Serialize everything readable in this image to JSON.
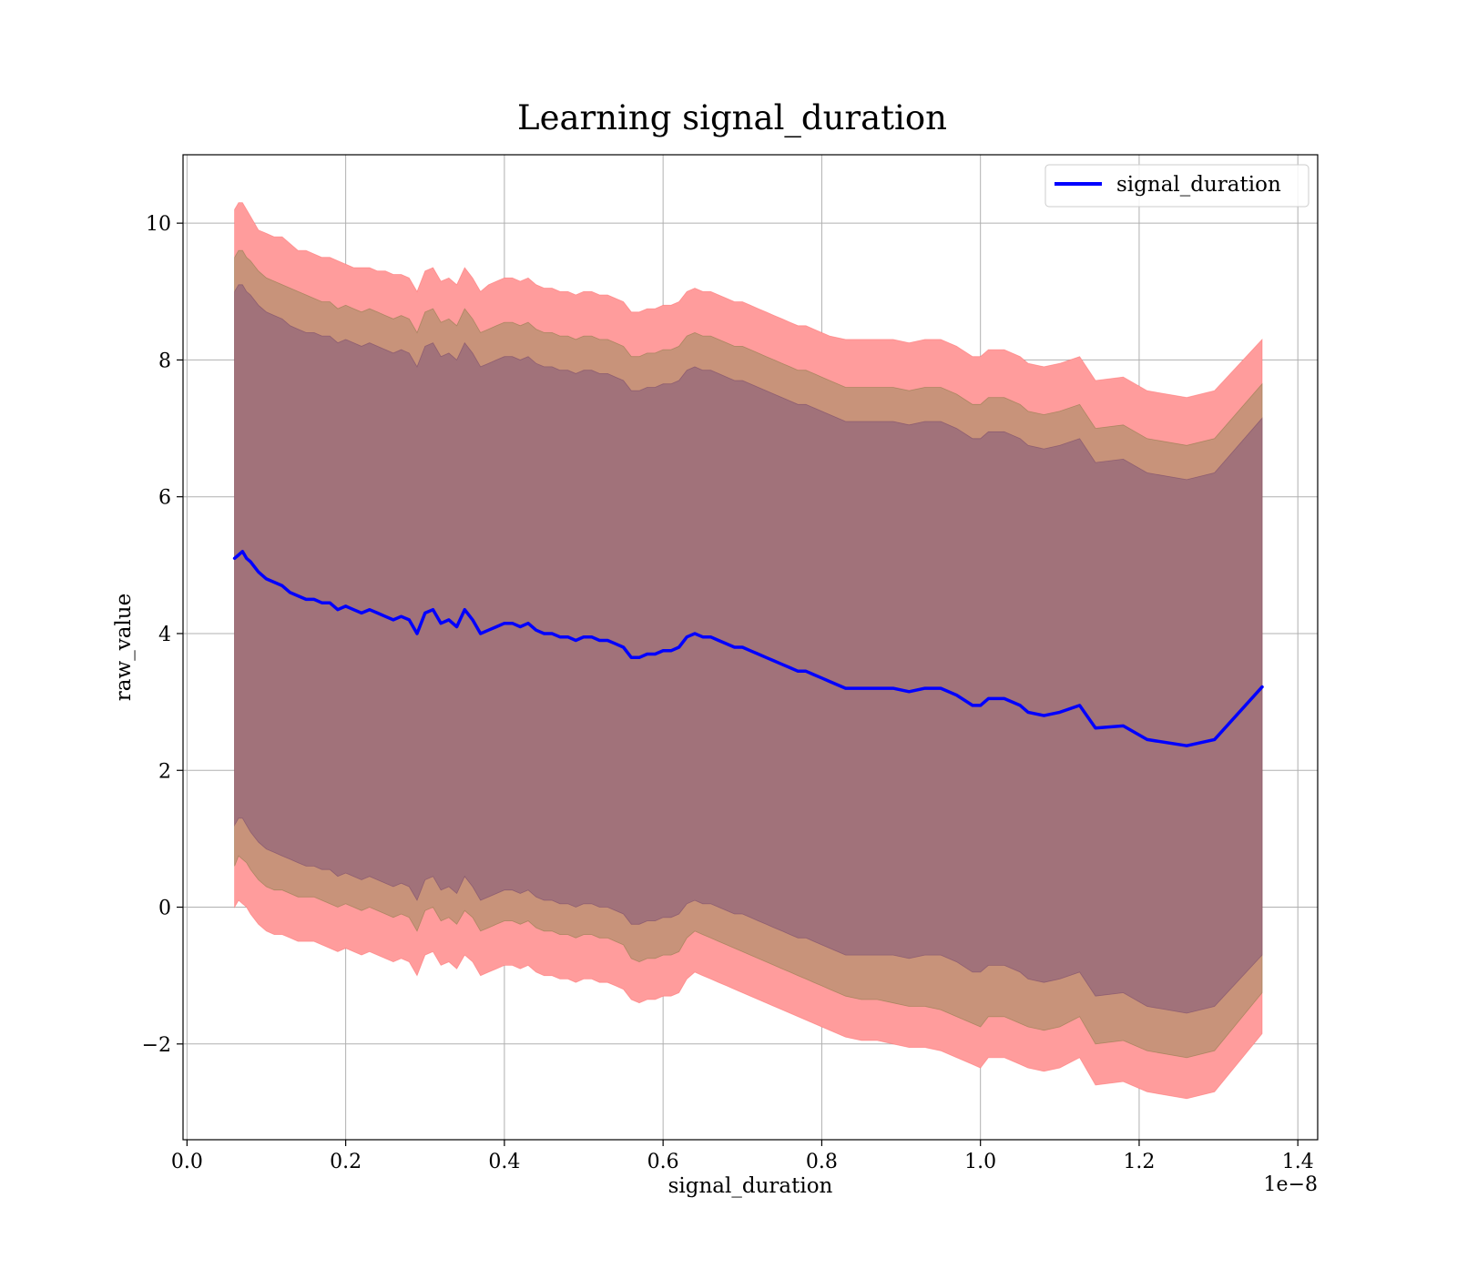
{
  "chart_data": {
    "type": "line",
    "title": "Learning signal_duration",
    "xlabel": "signal_duration",
    "ylabel": "raw_value",
    "x_offset_text": "1e−8",
    "xlim": [
      -0.005,
      1.425
    ],
    "ylim": [
      -3.4,
      11.0
    ],
    "x_ticks": [
      0.0,
      0.2,
      0.4,
      0.6,
      0.8,
      1.0,
      1.2,
      1.4
    ],
    "x_tick_labels": [
      "0.0",
      "0.2",
      "0.4",
      "0.6",
      "0.8",
      "1.0",
      "1.2",
      "1.4"
    ],
    "y_ticks": [
      -2,
      0,
      2,
      4,
      6,
      8,
      10
    ],
    "y_tick_labels": [
      "−2",
      "0",
      "2",
      "4",
      "6",
      "8",
      "10"
    ],
    "grid": true,
    "legend_position": "top-right",
    "colors": {
      "line": "#0000ff",
      "band_outer": "#ff9c9c",
      "band_middle": "#c8937a",
      "band_inner": "#a1727a",
      "band_outer_edge": "#ff7070",
      "band_middle_edge": "#8e7b4a",
      "band_inner_edge": "#7a4a6a"
    },
    "series": [
      {
        "name": "signal_duration",
        "x": [
          0.06,
          0.065,
          0.07,
          0.075,
          0.08,
          0.09,
          0.1,
          0.11,
          0.12,
          0.13,
          0.14,
          0.15,
          0.16,
          0.17,
          0.18,
          0.19,
          0.2,
          0.21,
          0.22,
          0.23,
          0.24,
          0.25,
          0.26,
          0.27,
          0.28,
          0.29,
          0.3,
          0.31,
          0.32,
          0.33,
          0.34,
          0.35,
          0.36,
          0.37,
          0.38,
          0.39,
          0.4,
          0.41,
          0.42,
          0.43,
          0.44,
          0.45,
          0.46,
          0.47,
          0.48,
          0.49,
          0.5,
          0.51,
          0.52,
          0.53,
          0.54,
          0.55,
          0.56,
          0.57,
          0.58,
          0.59,
          0.6,
          0.61,
          0.62,
          0.63,
          0.64,
          0.65,
          0.66,
          0.67,
          0.68,
          0.69,
          0.7,
          0.71,
          0.72,
          0.73,
          0.74,
          0.75,
          0.76,
          0.77,
          0.78,
          0.79,
          0.8,
          0.81,
          0.83,
          0.85,
          0.87,
          0.89,
          0.91,
          0.93,
          0.95,
          0.97,
          0.99,
          1.0,
          1.01,
          1.03,
          1.05,
          1.06,
          1.08,
          1.1,
          1.125,
          1.145,
          1.18,
          1.21,
          1.26,
          1.295,
          1.355
        ],
        "values": [
          5.1,
          5.15,
          5.2,
          5.1,
          5.05,
          4.9,
          4.8,
          4.75,
          4.7,
          4.6,
          4.55,
          4.5,
          4.5,
          4.45,
          4.45,
          4.35,
          4.4,
          4.35,
          4.3,
          4.35,
          4.3,
          4.25,
          4.2,
          4.25,
          4.2,
          4.0,
          4.3,
          4.35,
          4.15,
          4.2,
          4.1,
          4.35,
          4.2,
          4.0,
          4.05,
          4.1,
          4.15,
          4.15,
          4.1,
          4.15,
          4.05,
          4.0,
          4.0,
          3.95,
          3.95,
          3.9,
          3.95,
          3.95,
          3.9,
          3.9,
          3.85,
          3.8,
          3.65,
          3.65,
          3.7,
          3.7,
          3.75,
          3.75,
          3.8,
          3.95,
          4.0,
          3.95,
          3.95,
          3.9,
          3.85,
          3.8,
          3.8,
          3.75,
          3.7,
          3.65,
          3.6,
          3.55,
          3.5,
          3.45,
          3.45,
          3.4,
          3.35,
          3.3,
          3.2,
          3.2,
          3.2,
          3.2,
          3.15,
          3.2,
          3.2,
          3.1,
          2.95,
          2.95,
          3.05,
          3.05,
          2.95,
          2.85,
          2.8,
          2.85,
          2.95,
          2.62,
          2.65,
          2.45,
          2.36,
          2.45,
          3.22
        ]
      }
    ],
    "bands": [
      {
        "level": "outer",
        "lower": [
          0.0,
          0.1,
          0.05,
          0.0,
          -0.1,
          -0.25,
          -0.35,
          -0.4,
          -0.4,
          -0.45,
          -0.5,
          -0.5,
          -0.5,
          -0.55,
          -0.6,
          -0.65,
          -0.6,
          -0.65,
          -0.7,
          -0.65,
          -0.7,
          -0.75,
          -0.8,
          -0.75,
          -0.8,
          -1.0,
          -0.7,
          -0.65,
          -0.85,
          -0.8,
          -0.9,
          -0.7,
          -0.8,
          -1.0,
          -0.95,
          -0.9,
          -0.85,
          -0.85,
          -0.9,
          -0.85,
          -0.95,
          -1.0,
          -1.0,
          -1.05,
          -1.05,
          -1.1,
          -1.05,
          -1.05,
          -1.1,
          -1.1,
          -1.15,
          -1.2,
          -1.35,
          -1.4,
          -1.35,
          -1.35,
          -1.3,
          -1.3,
          -1.25,
          -1.05,
          -0.95,
          -1.0,
          -1.05,
          -1.1,
          -1.15,
          -1.2,
          -1.25,
          -1.3,
          -1.35,
          -1.4,
          -1.45,
          -1.5,
          -1.55,
          -1.6,
          -1.65,
          -1.7,
          -1.75,
          -1.8,
          -1.9,
          -1.95,
          -1.95,
          -2.0,
          -2.05,
          -2.05,
          -2.1,
          -2.2,
          -2.3,
          -2.35,
          -2.2,
          -2.2,
          -2.3,
          -2.35,
          -2.4,
          -2.35,
          -2.2,
          -2.6,
          -2.55,
          -2.7,
          -2.8,
          -2.7,
          -1.85
        ],
        "upper": [
          10.2,
          10.3,
          10.3,
          10.2,
          10.1,
          9.9,
          9.85,
          9.8,
          9.8,
          9.7,
          9.6,
          9.6,
          9.55,
          9.5,
          9.5,
          9.45,
          9.4,
          9.35,
          9.35,
          9.35,
          9.3,
          9.3,
          9.25,
          9.25,
          9.2,
          9.0,
          9.3,
          9.35,
          9.15,
          9.2,
          9.1,
          9.35,
          9.2,
          9.0,
          9.1,
          9.15,
          9.2,
          9.2,
          9.15,
          9.2,
          9.1,
          9.05,
          9.05,
          9.0,
          9.0,
          8.95,
          9.0,
          9.0,
          8.95,
          8.95,
          8.9,
          8.85,
          8.7,
          8.7,
          8.75,
          8.75,
          8.8,
          8.8,
          8.85,
          9.0,
          9.05,
          9.0,
          9.0,
          8.95,
          8.9,
          8.85,
          8.85,
          8.8,
          8.75,
          8.7,
          8.65,
          8.6,
          8.55,
          8.5,
          8.5,
          8.45,
          8.4,
          8.35,
          8.3,
          8.3,
          8.3,
          8.3,
          8.25,
          8.3,
          8.3,
          8.2,
          8.05,
          8.05,
          8.15,
          8.15,
          8.05,
          7.95,
          7.9,
          7.95,
          8.05,
          7.7,
          7.75,
          7.55,
          7.45,
          7.55,
          8.3
        ]
      },
      {
        "level": "middle",
        "lower": [
          0.6,
          0.75,
          0.7,
          0.65,
          0.55,
          0.4,
          0.3,
          0.25,
          0.25,
          0.2,
          0.15,
          0.15,
          0.15,
          0.1,
          0.05,
          0.0,
          0.05,
          0.0,
          -0.05,
          0.0,
          -0.05,
          -0.1,
          -0.15,
          -0.1,
          -0.15,
          -0.35,
          -0.05,
          0.0,
          -0.2,
          -0.15,
          -0.25,
          -0.05,
          -0.15,
          -0.35,
          -0.3,
          -0.25,
          -0.2,
          -0.2,
          -0.25,
          -0.2,
          -0.3,
          -0.35,
          -0.35,
          -0.4,
          -0.4,
          -0.45,
          -0.4,
          -0.4,
          -0.45,
          -0.45,
          -0.5,
          -0.55,
          -0.75,
          -0.8,
          -0.75,
          -0.75,
          -0.7,
          -0.7,
          -0.65,
          -0.45,
          -0.35,
          -0.4,
          -0.45,
          -0.5,
          -0.55,
          -0.6,
          -0.65,
          -0.7,
          -0.75,
          -0.8,
          -0.85,
          -0.9,
          -0.95,
          -1.0,
          -1.05,
          -1.1,
          -1.15,
          -1.2,
          -1.3,
          -1.35,
          -1.35,
          -1.4,
          -1.45,
          -1.45,
          -1.5,
          -1.6,
          -1.7,
          -1.75,
          -1.6,
          -1.6,
          -1.7,
          -1.75,
          -1.8,
          -1.75,
          -1.6,
          -2.0,
          -1.95,
          -2.1,
          -2.2,
          -2.1,
          -1.25
        ],
        "upper": [
          9.5,
          9.6,
          9.6,
          9.5,
          9.45,
          9.3,
          9.2,
          9.15,
          9.1,
          9.05,
          9.0,
          8.95,
          8.9,
          8.85,
          8.85,
          8.75,
          8.8,
          8.75,
          8.7,
          8.75,
          8.7,
          8.65,
          8.6,
          8.65,
          8.6,
          8.4,
          8.7,
          8.75,
          8.55,
          8.6,
          8.5,
          8.75,
          8.6,
          8.4,
          8.45,
          8.5,
          8.55,
          8.55,
          8.5,
          8.55,
          8.45,
          8.4,
          8.4,
          8.35,
          8.35,
          8.3,
          8.35,
          8.35,
          8.3,
          8.3,
          8.25,
          8.2,
          8.05,
          8.05,
          8.1,
          8.1,
          8.15,
          8.15,
          8.2,
          8.35,
          8.4,
          8.35,
          8.35,
          8.3,
          8.25,
          8.2,
          8.2,
          8.15,
          8.1,
          8.05,
          8.0,
          7.95,
          7.9,
          7.85,
          7.85,
          7.8,
          7.75,
          7.7,
          7.6,
          7.6,
          7.6,
          7.6,
          7.55,
          7.6,
          7.6,
          7.5,
          7.35,
          7.35,
          7.45,
          7.45,
          7.35,
          7.25,
          7.2,
          7.25,
          7.35,
          7.0,
          7.05,
          6.85,
          6.75,
          6.85,
          7.65
        ]
      },
      {
        "level": "inner",
        "lower": [
          1.2,
          1.3,
          1.3,
          1.2,
          1.1,
          0.95,
          0.85,
          0.8,
          0.75,
          0.7,
          0.65,
          0.6,
          0.6,
          0.55,
          0.55,
          0.45,
          0.5,
          0.45,
          0.4,
          0.45,
          0.4,
          0.35,
          0.3,
          0.35,
          0.3,
          0.1,
          0.4,
          0.45,
          0.25,
          0.3,
          0.2,
          0.45,
          0.3,
          0.1,
          0.15,
          0.2,
          0.25,
          0.25,
          0.2,
          0.25,
          0.15,
          0.1,
          0.1,
          0.05,
          0.05,
          0.0,
          0.05,
          0.05,
          0.0,
          0.0,
          -0.05,
          -0.1,
          -0.25,
          -0.25,
          -0.2,
          -0.2,
          -0.15,
          -0.15,
          -0.1,
          0.05,
          0.1,
          0.05,
          0.05,
          0.0,
          -0.05,
          -0.1,
          -0.1,
          -0.15,
          -0.2,
          -0.25,
          -0.3,
          -0.35,
          -0.4,
          -0.45,
          -0.45,
          -0.5,
          -0.55,
          -0.6,
          -0.7,
          -0.7,
          -0.7,
          -0.7,
          -0.75,
          -0.7,
          -0.7,
          -0.8,
          -0.95,
          -0.95,
          -0.85,
          -0.85,
          -0.95,
          -1.05,
          -1.1,
          -1.05,
          -0.95,
          -1.3,
          -1.25,
          -1.45,
          -1.55,
          -1.45,
          -0.7
        ],
        "upper": [
          9.0,
          9.1,
          9.1,
          9.0,
          8.95,
          8.8,
          8.7,
          8.65,
          8.6,
          8.5,
          8.45,
          8.4,
          8.4,
          8.35,
          8.35,
          8.25,
          8.3,
          8.25,
          8.2,
          8.25,
          8.2,
          8.15,
          8.1,
          8.15,
          8.1,
          7.9,
          8.2,
          8.25,
          8.05,
          8.1,
          8.0,
          8.25,
          8.1,
          7.9,
          7.95,
          8.0,
          8.05,
          8.05,
          8.0,
          8.05,
          7.95,
          7.9,
          7.9,
          7.85,
          7.85,
          7.8,
          7.85,
          7.85,
          7.8,
          7.8,
          7.75,
          7.7,
          7.55,
          7.55,
          7.6,
          7.6,
          7.65,
          7.65,
          7.7,
          7.85,
          7.9,
          7.85,
          7.85,
          7.8,
          7.75,
          7.7,
          7.7,
          7.65,
          7.6,
          7.55,
          7.5,
          7.45,
          7.4,
          7.35,
          7.35,
          7.3,
          7.25,
          7.2,
          7.1,
          7.1,
          7.1,
          7.1,
          7.05,
          7.1,
          7.1,
          7.0,
          6.85,
          6.85,
          6.95,
          6.95,
          6.85,
          6.75,
          6.7,
          6.75,
          6.85,
          6.5,
          6.55,
          6.35,
          6.25,
          6.35,
          7.15
        ]
      }
    ]
  }
}
